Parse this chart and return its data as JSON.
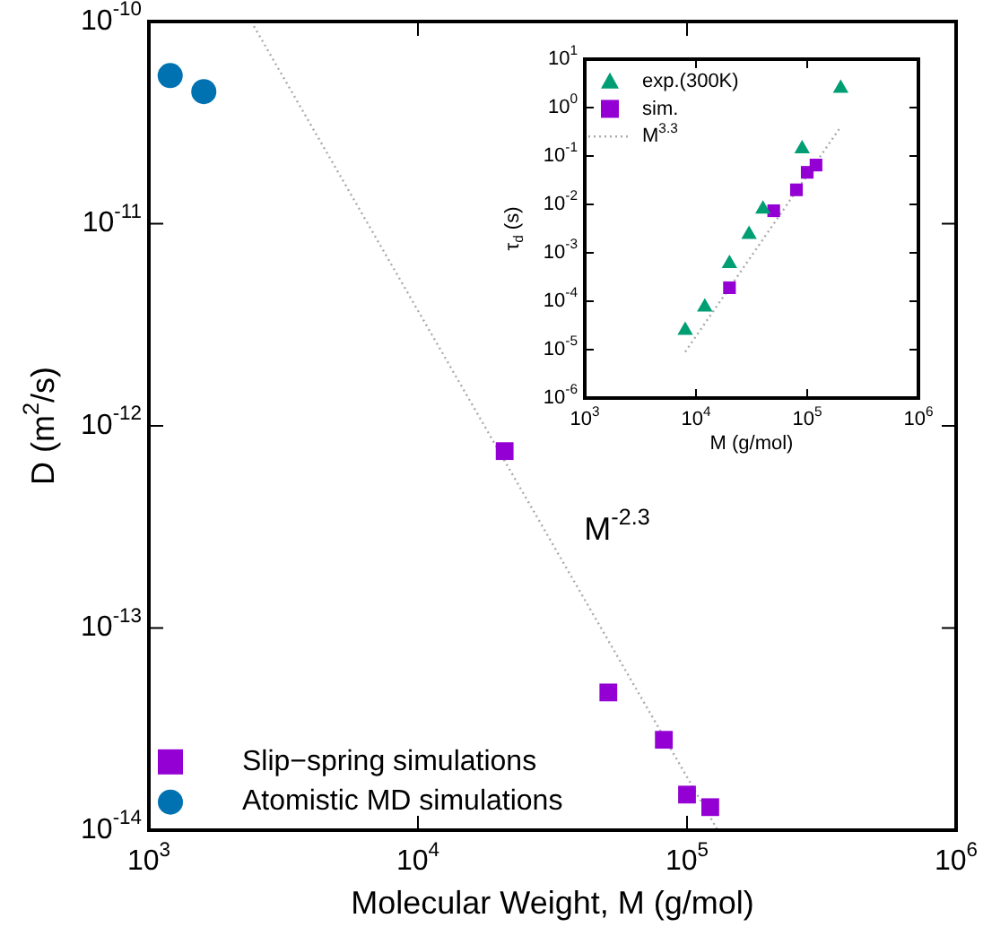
{
  "chart_data": [
    {
      "type": "scatter",
      "xlabel": "Molecular Weight, M (g/mol)",
      "ylabel": "D (m$^{2}$/s)",
      "log": "xy",
      "grid": false,
      "legend": "bottom left",
      "xlim": [
        1000,
        1000000
      ],
      "ylim": [
        1e-14,
        1e-10
      ],
      "xticks": [
        {
          "value": 1000,
          "label": "10$^{3}$"
        },
        {
          "value": 10000,
          "label": "10$^{4}$"
        },
        {
          "value": 100000,
          "label": "10$^{5}$"
        },
        {
          "value": 1000000,
          "label": "10$^{6}$"
        }
      ],
      "yticks": [
        {
          "value": 1e-14,
          "label": "10$^{-14}$"
        },
        {
          "value": 1e-13,
          "label": "10$^{-13}$"
        },
        {
          "value": 1e-12,
          "label": "10$^{-12}$"
        },
        {
          "value": 1e-11,
          "label": "10$^{-11}$"
        },
        {
          "value": 1e-10,
          "label": "10$^{-10}$"
        }
      ],
      "series": [
        {
          "name": "Slip−spring simulations",
          "type": "scatter",
          "marker": "square",
          "color": "#9400d3",
          "x": [
            21000,
            51000,
            82000,
            100000,
            122000
          ],
          "values": [
            7.5e-13,
            4.8e-14,
            2.8e-14,
            1.5e-14,
            1.3e-14
          ]
        },
        {
          "name": "Atomistic MD simulations",
          "type": "scatter",
          "marker": "circle",
          "color": "#0072b2",
          "x": [
            1200,
            1600
          ],
          "values": [
            5.4e-11,
            4.5e-11
          ]
        },
        {
          "type": "line",
          "marker": "none",
          "line_style": "dotted",
          "color": "#aaaaaa",
          "x": [
            2400,
            130000
          ],
          "values": [
            1e-10,
            1e-14
          ]
        }
      ],
      "annotations": [
        "M$^{-2.3}$"
      ]
    },
    {
      "type": "scatter",
      "xlabel": "M (g/mol)",
      "ylabel": "τ$_{d}$ (s)",
      "log": "xy",
      "grid": false,
      "legend": "top left",
      "xlim": [
        1000,
        1000000
      ],
      "ylim": [
        1e-06,
        10
      ],
      "xticks": [
        {
          "value": 1000,
          "label": "10$^{3}$"
        },
        {
          "value": 10000,
          "label": "10$^{4}$"
        },
        {
          "value": 100000,
          "label": "10$^{5}$"
        },
        {
          "value": 1000000,
          "label": "10$^{6}$"
        }
      ],
      "yticks": [
        {
          "value": 1e-06,
          "label": "10$^{-6}$"
        },
        {
          "value": 1e-05,
          "label": "10$^{-5}$"
        },
        {
          "value": 0.0001,
          "label": "10$^{-4}$"
        },
        {
          "value": 0.001,
          "label": "10$^{-3}$"
        },
        {
          "value": 0.01,
          "label": "10$^{-2}$"
        },
        {
          "value": 0.1,
          "label": "10$^{-1}$"
        },
        {
          "value": 1,
          "label": "10$^{0}$"
        },
        {
          "value": 10,
          "label": "10$^{1}$"
        }
      ],
      "series": [
        {
          "name": "exp.(300K)",
          "type": "scatter",
          "marker": "triangle",
          "color": "#009e73",
          "x": [
            8000,
            12000,
            20000,
            30000,
            40000,
            90000,
            200000
          ],
          "values": [
            2.5e-05,
            7.6e-05,
            0.0006,
            0.0024,
            0.008,
            0.14,
            2.5
          ]
        },
        {
          "name": "sim.",
          "type": "scatter",
          "marker": "square",
          "color": "#9400d3",
          "x": [
            20000,
            50000,
            80000,
            100000,
            120000
          ],
          "values": [
            0.00019,
            0.0074,
            0.02,
            0.046,
            0.065
          ]
        },
        {
          "name": "M$^{3.3}$",
          "type": "line",
          "marker": "none",
          "line_style": "dotted",
          "color": "#aaaaaa",
          "x": [
            8000,
            200000
          ],
          "values": [
            9e-06,
            0.4
          ]
        }
      ]
    }
  ]
}
